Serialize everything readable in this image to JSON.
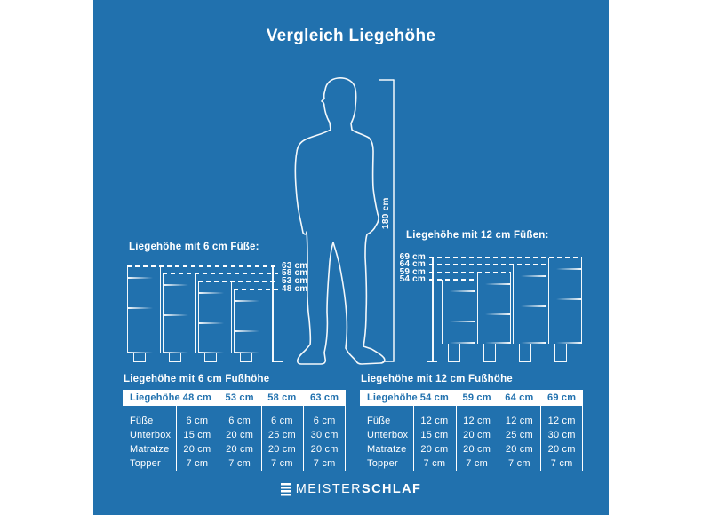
{
  "title": "Vergleich Liegehöhe",
  "figure": {
    "height_label": "180 cm",
    "height_cm": 180
  },
  "bed_groups": [
    {
      "heading": "Liegehöhe mit 6 cm Füße:",
      "foot_cm": 6,
      "layer_boundaries_cm": [
        7,
        27
      ],
      "beds": [
        {
          "label": "63 cm",
          "total_cm": 63
        },
        {
          "label": "58 cm",
          "total_cm": 58
        },
        {
          "label": "53 cm",
          "total_cm": 53
        },
        {
          "label": "48 cm",
          "total_cm": 48
        }
      ]
    },
    {
      "heading": "Liegehöhe mit 12 cm Füßen:",
      "foot_cm": 12,
      "layer_boundaries_cm": [
        7,
        27
      ],
      "beds": [
        {
          "label": "54 cm",
          "total_cm": 54
        },
        {
          "label": "59 cm",
          "total_cm": 59
        },
        {
          "label": "64 cm",
          "total_cm": 64
        },
        {
          "label": "69 cm",
          "total_cm": 69
        }
      ]
    }
  ],
  "tables": [
    {
      "title": "Liegehöhe mit 6 cm Fußhöhe",
      "header": [
        "Liegehöhe",
        "48 cm",
        "53 cm",
        "58 cm",
        "63 cm"
      ],
      "rows": [
        [
          "Füße",
          "6 cm",
          "6 cm",
          "6 cm",
          "6 cm"
        ],
        [
          "Unterbox",
          "15 cm",
          "20 cm",
          "25 cm",
          "30 cm"
        ],
        [
          "Matratze",
          "20 cm",
          "20 cm",
          "20 cm",
          "20 cm"
        ],
        [
          "Topper",
          "7 cm",
          "7 cm",
          "7 cm",
          "7 cm"
        ]
      ]
    },
    {
      "title": "Liegehöhe mit 12 cm Fußhöhe",
      "header": [
        "Liegehöhe",
        "54 cm",
        "59 cm",
        "64 cm",
        "69 cm"
      ],
      "rows": [
        [
          "Füße",
          "12 cm",
          "12 cm",
          "12 cm",
          "12 cm"
        ],
        [
          "Unterbox",
          "15 cm",
          "20 cm",
          "25 cm",
          "30 cm"
        ],
        [
          "Matratze",
          "20 cm",
          "20 cm",
          "20 cm",
          "20 cm"
        ],
        [
          "Topper",
          "7 cm",
          "7 cm",
          "7 cm",
          "7 cm"
        ]
      ]
    }
  ],
  "logo": {
    "icon": "mattress-layers-icon",
    "brand_regular": "MEISTER",
    "brand_bold": "SCHLAF"
  },
  "colors": {
    "background": "#2171ae",
    "foreground": "#ffffff"
  }
}
